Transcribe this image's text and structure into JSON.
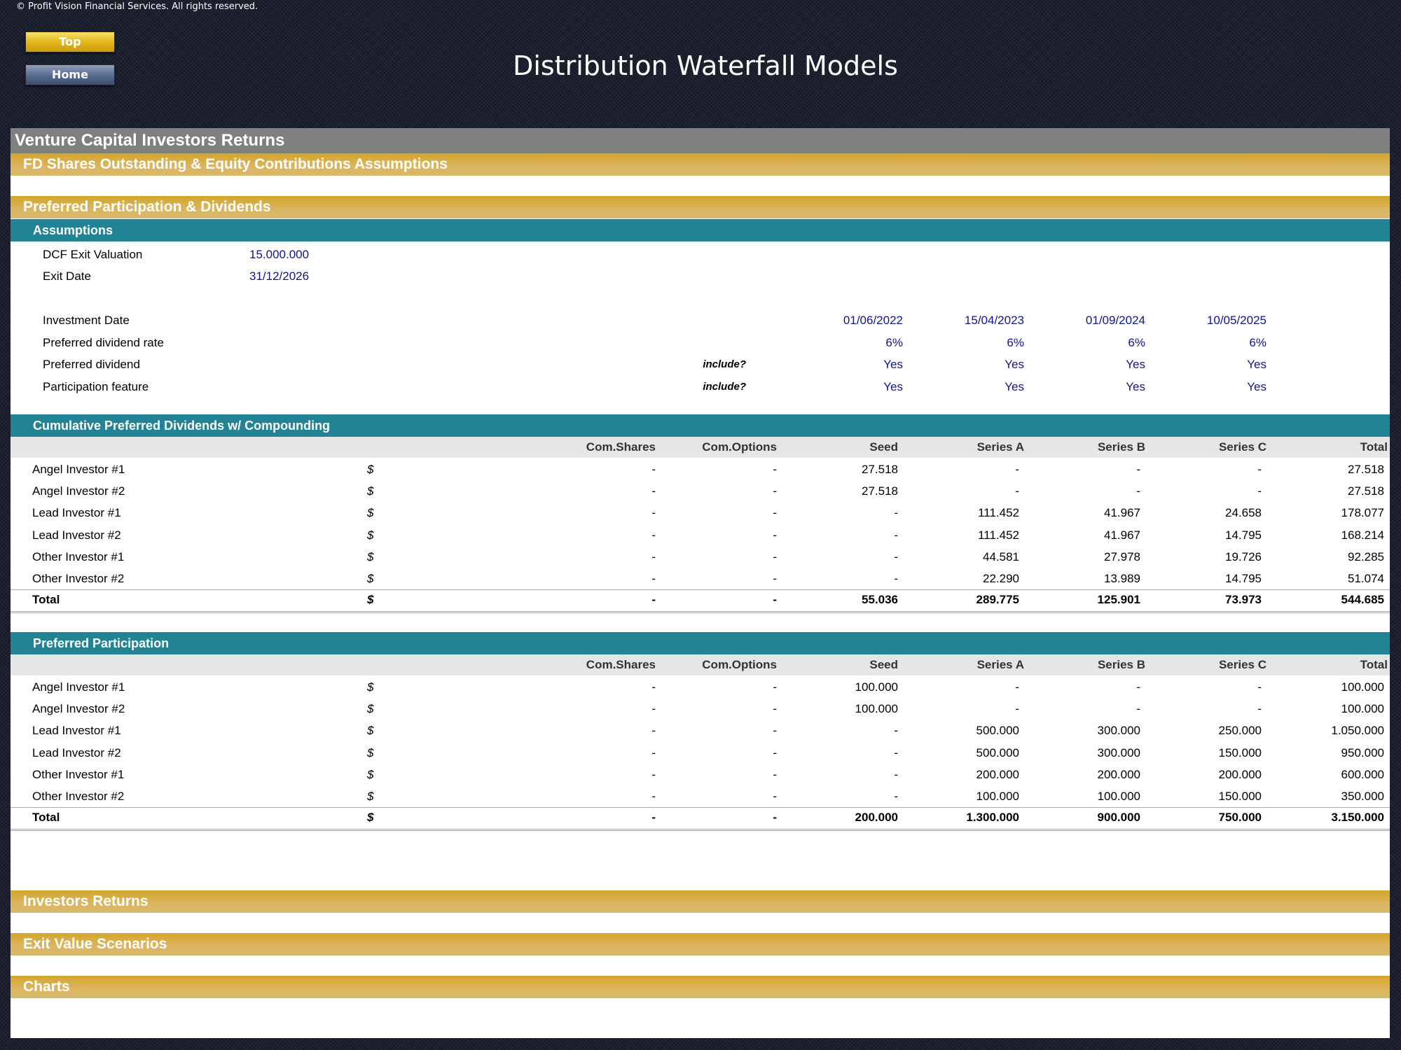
{
  "copyright": "© Profit Vision Financial Services. All rights reserved.",
  "nav": {
    "top": "Top",
    "home": "Home"
  },
  "title": "Distribution Waterfall Models",
  "sections": {
    "venture": "Venture Capital Investors Returns",
    "fd_shares": "FD Shares Outstanding & Equity Contributions Assumptions",
    "preferred": "Preferred Participation & Dividends",
    "assumptions": "Assumptions",
    "cumulative": "Cumulative Preferred Dividends w/ Compounding",
    "participation": "Preferred Participation",
    "investors_returns": "Investors Returns",
    "exit_scenarios": "Exit Value Scenarios",
    "charts": "Charts"
  },
  "assumptions": {
    "dcf_label": "DCF Exit Valuation",
    "dcf_value": "15.000.000",
    "exit_label": "Exit Date",
    "exit_value": "31/12/2026",
    "rows": [
      {
        "label": "Investment Date",
        "note": "",
        "values": [
          "01/06/2022",
          "15/04/2023",
          "01/09/2024",
          "10/05/2025"
        ]
      },
      {
        "label": "Preferred dividend rate",
        "note": "",
        "values": [
          "6%",
          "6%",
          "6%",
          "6%"
        ]
      },
      {
        "label": "Preferred dividend",
        "note": "include?",
        "values": [
          "Yes",
          "Yes",
          "Yes",
          "Yes"
        ]
      },
      {
        "label": "Participation feature",
        "note": "include?",
        "values": [
          "Yes",
          "Yes",
          "Yes",
          "Yes"
        ]
      }
    ]
  },
  "columns": [
    "Com.Shares",
    "Com.Options",
    "Seed",
    "Series A",
    "Series B",
    "Series C",
    "Total"
  ],
  "cumulative_table": {
    "rows": [
      {
        "name": "Angel Investor #1",
        "cur": "$",
        "values": [
          "-",
          "-",
          "27.518",
          "-",
          "-",
          "-",
          "27.518"
        ]
      },
      {
        "name": "Angel Investor #2",
        "cur": "$",
        "values": [
          "-",
          "-",
          "27.518",
          "-",
          "-",
          "-",
          "27.518"
        ]
      },
      {
        "name": "Lead Investor #1",
        "cur": "$",
        "values": [
          "-",
          "-",
          "-",
          "111.452",
          "41.967",
          "24.658",
          "178.077"
        ]
      },
      {
        "name": "Lead Investor #2",
        "cur": "$",
        "values": [
          "-",
          "-",
          "-",
          "111.452",
          "41.967",
          "14.795",
          "168.214"
        ]
      },
      {
        "name": "Other Investor #1",
        "cur": "$",
        "values": [
          "-",
          "-",
          "-",
          "44.581",
          "27.978",
          "19.726",
          "92.285"
        ]
      },
      {
        "name": "Other Investor #2",
        "cur": "$",
        "values": [
          "-",
          "-",
          "-",
          "22.290",
          "13.989",
          "14.795",
          "51.074"
        ]
      }
    ],
    "total": {
      "name": "Total",
      "cur": "$",
      "values": [
        "-",
        "-",
        "55.036",
        "289.775",
        "125.901",
        "73.973",
        "544.685"
      ]
    }
  },
  "participation_table": {
    "rows": [
      {
        "name": "Angel Investor #1",
        "cur": "$",
        "values": [
          "-",
          "-",
          "100.000",
          "-",
          "-",
          "-",
          "100.000"
        ]
      },
      {
        "name": "Angel Investor #2",
        "cur": "$",
        "values": [
          "-",
          "-",
          "100.000",
          "-",
          "-",
          "-",
          "100.000"
        ]
      },
      {
        "name": "Lead Investor #1",
        "cur": "$",
        "values": [
          "-",
          "-",
          "-",
          "500.000",
          "300.000",
          "250.000",
          "1.050.000"
        ]
      },
      {
        "name": "Lead Investor #2",
        "cur": "$",
        "values": [
          "-",
          "-",
          "-",
          "500.000",
          "300.000",
          "150.000",
          "950.000"
        ]
      },
      {
        "name": "Other Investor #1",
        "cur": "$",
        "values": [
          "-",
          "-",
          "-",
          "200.000",
          "200.000",
          "200.000",
          "600.000"
        ]
      },
      {
        "name": "Other Investor #2",
        "cur": "$",
        "values": [
          "-",
          "-",
          "-",
          "100.000",
          "100.000",
          "150.000",
          "350.000"
        ]
      }
    ],
    "total": {
      "name": "Total",
      "cur": "$",
      "values": [
        "-",
        "-",
        "200.000",
        "1.300.000",
        "900.000",
        "750.000",
        "3.150.000"
      ]
    }
  }
}
